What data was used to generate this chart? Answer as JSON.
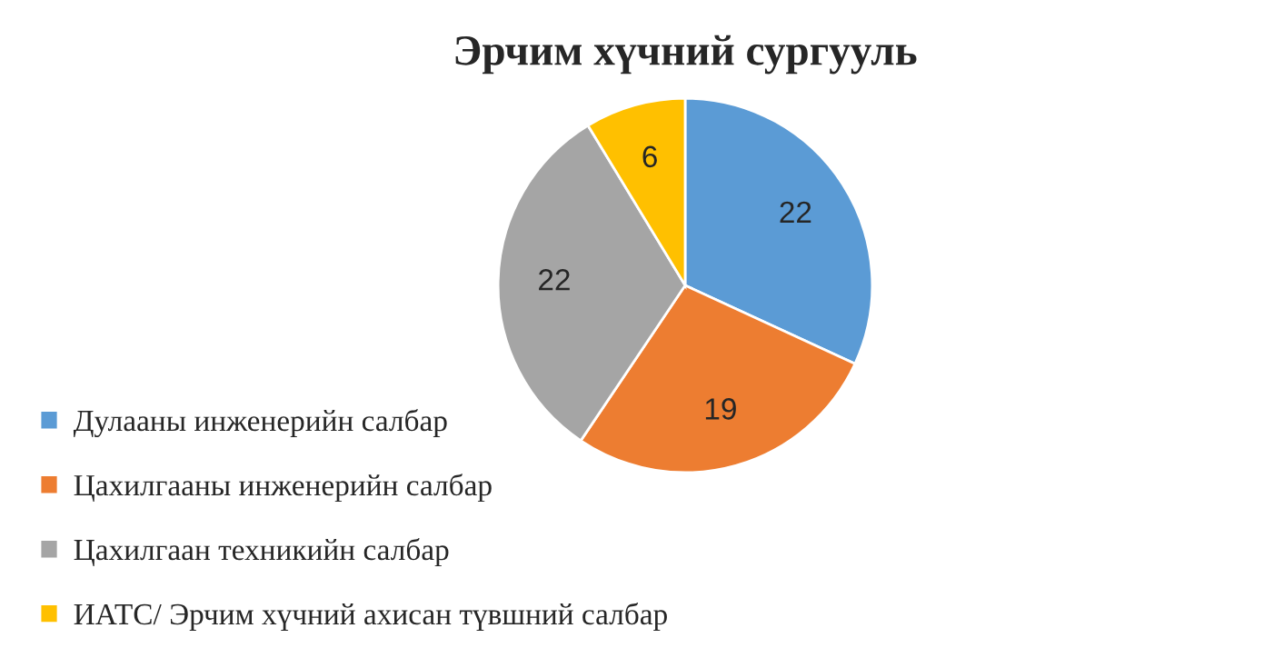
{
  "chart_data": {
    "type": "pie",
    "title": "Эрчим хүчний сургууль",
    "categories": [
      "Дулааны инженерийн салбар",
      "Цахилгааны инженерийн салбар",
      "Цахилгаан техникийн салбар",
      "ИАТС/ Эрчим хүчний ахисан түвшний салбар"
    ],
    "values": [
      22,
      19,
      22,
      6
    ],
    "colors": [
      "#5b9bd5",
      "#ed7d31",
      "#a5a5a5",
      "#ffc000"
    ],
    "data_labels": true,
    "legend": "bottom left"
  }
}
